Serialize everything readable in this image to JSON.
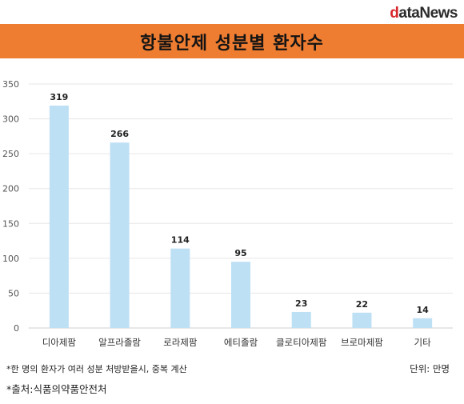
{
  "logo": {
    "first": "d",
    "rest": "ataNews"
  },
  "title": "항불안제 성분별 환자수",
  "footnote": "*한 명의 환자가 여러 성분 처방받을시, 중복 계산",
  "unit": "단위: 만명",
  "source": "*출처:식품의약품안전처",
  "colors": {
    "bar": "#bde0f5",
    "title_bg": "#ef7d31",
    "logo_accent": "#d7262b"
  },
  "chart_data": {
    "type": "bar",
    "categories": [
      "디아제팜",
      "알프라졸람",
      "로라제팜",
      "에티졸람",
      "클로티아제팜",
      "브로마제팜",
      "기타"
    ],
    "values": [
      319,
      266,
      114,
      95,
      23,
      22,
      14
    ],
    "ylim": [
      0,
      350
    ],
    "yticks": [
      0,
      50,
      100,
      150,
      200,
      250,
      300,
      350
    ],
    "grid": true,
    "data_labels": true
  }
}
